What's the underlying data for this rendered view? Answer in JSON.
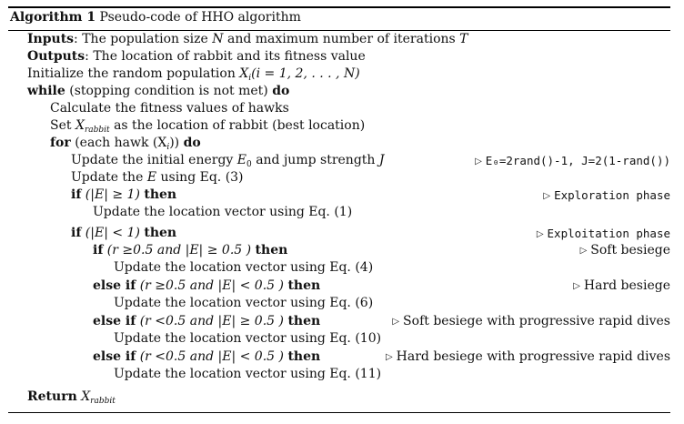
{
  "header": {
    "number_label": "Algorithm 1",
    "title": "Pseudo-code of HHO algorithm"
  },
  "lines": {
    "inputs_kw": "Inputs",
    "inputs_text": ": The population size",
    "inputs_and": "and maximum number of iterations",
    "N": "N",
    "T": "T",
    "outputs_kw": "Outputs",
    "outputs_text": ": The location of rabbit and its fitness value",
    "init_text": "Initialize the random population",
    "X": "X",
    "i_sub": "i",
    "init_paren": "(i = 1, 2, . . . , N)",
    "while_kw": "while",
    "while_cond": "(stopping condition is not met)",
    "do_kw": "do",
    "calc_text": "Calculate the fitness values of hawks",
    "set_text": "Set",
    "rabbit_sub": "rabbit",
    "set_rest": "as the location of rabbit (best location)",
    "for_kw": "for",
    "for_cond": "(each hawk (X",
    "for_close": "))",
    "update_energy": "Update the initial energy",
    "E": "E",
    "zero_sub": "0",
    "jump_text": "and jump strength",
    "J": "J",
    "energy_comment": "E₀=2rand()-1, J=2(1-rand())",
    "update_E": "Update the",
    "using_eq3": "using Eq. (3)",
    "if_kw": "if",
    "cond_ge1": "(|E| ≥ 1)",
    "then_kw": "then",
    "exploration_comment": "Exploration phase",
    "update_eq1": "Update the location vector using Eq. (1)",
    "cond_lt1": "(|E| < 1)",
    "exploitation_comment": "Exploitation phase",
    "cond_soft": "(r ≥0.5 and |E| ≥ 0.5 )",
    "soft_comment": "Soft besiege",
    "update_eq4": "Update the location vector using Eq. (4)",
    "else_if_kw": "else if",
    "cond_hard": "(r ≥0.5 and |E| < 0.5 )",
    "hard_comment": "Hard besiege",
    "update_eq6": "Update the location vector using Eq. (6)",
    "cond_soft_dive": "(r <0.5 and |E| ≥ 0.5 )",
    "soft_dive_comment": "Soft besiege with progressive rapid dives",
    "update_eq10": "Update the location vector using Eq. (10)",
    "cond_hard_dive": "(r <0.5 and |E| < 0.5 )",
    "hard_dive_comment": "Hard besiege with progressive rapid dives",
    "update_eq11": "Update the location vector using Eq. (11)",
    "return_kw": "Return"
  },
  "icons": {
    "comment_marker": "triangle-right-icon"
  }
}
